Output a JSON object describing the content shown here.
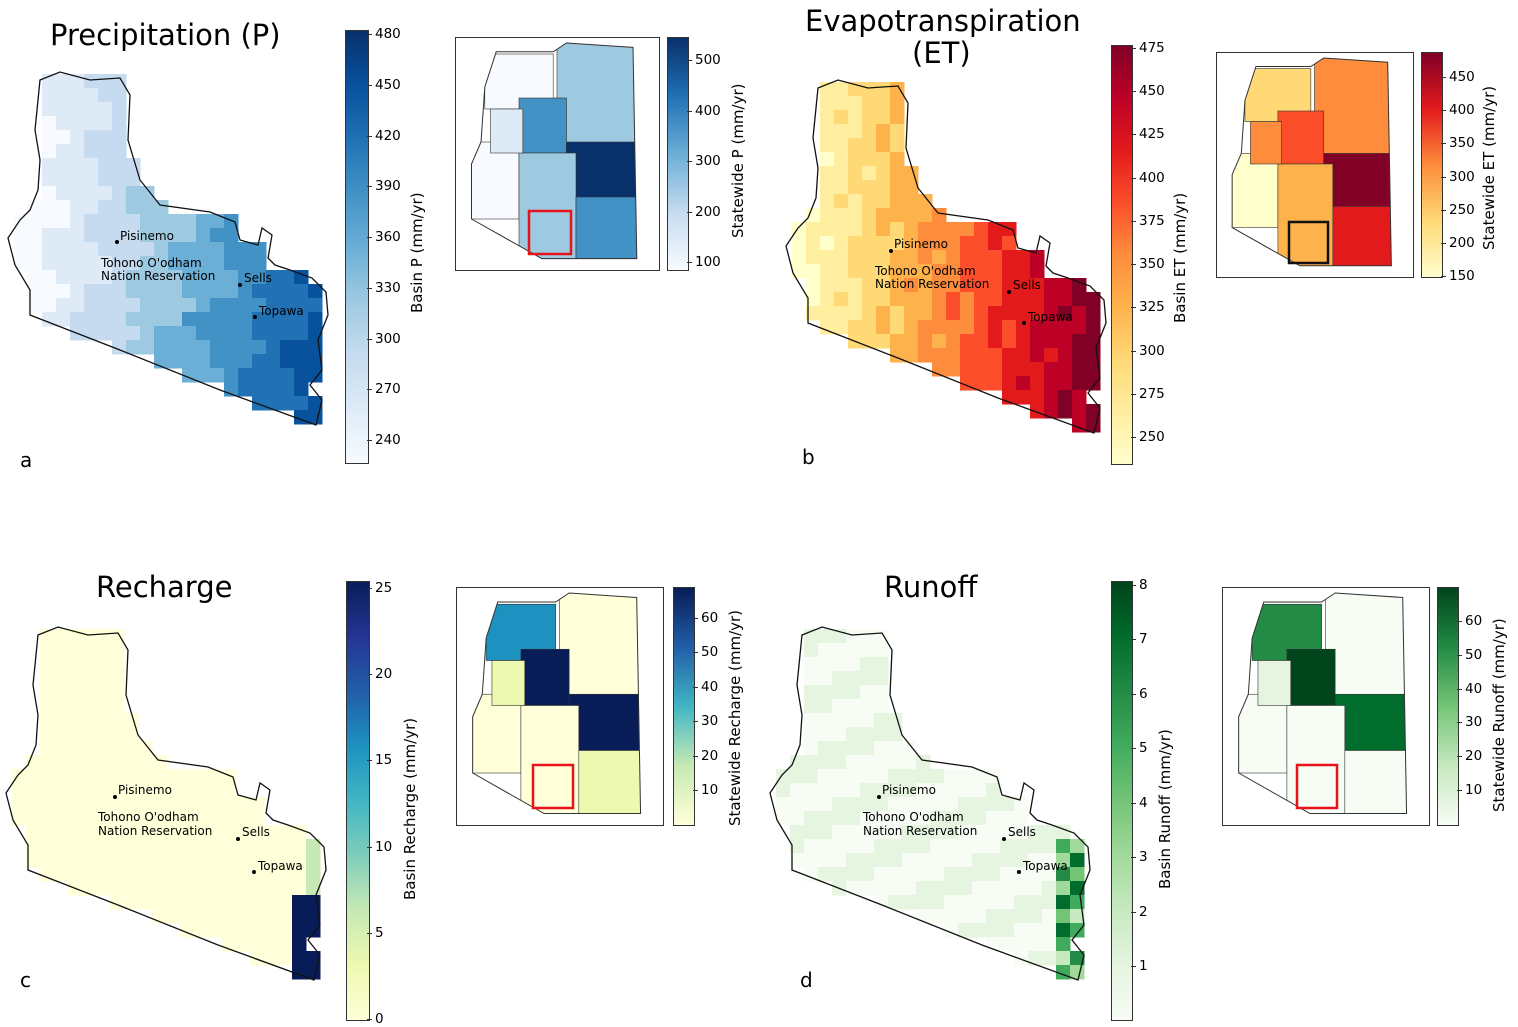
{
  "panels": [
    {
      "id": "a",
      "title": "Precipitation (P)",
      "letter": "a",
      "basin_label": "Basin P (mm/yr)",
      "basin_ticks": [
        "480",
        "450",
        "420",
        "390",
        "360",
        "330",
        "300",
        "270",
        "240"
      ],
      "statewide_label": "Statewide P (mm/yr)",
      "statewide_ticks": [
        "500",
        "400",
        "300",
        "200",
        "100"
      ],
      "colormap": [
        "#f7fbff",
        "#deebf7",
        "#c6dbef",
        "#9ecae1",
        "#6baed6",
        "#4292c6",
        "#2171b5",
        "#08519c",
        "#08306b"
      ],
      "inset_box_color": "#e8121b"
    },
    {
      "id": "b",
      "title": "Evapotranspiration\n(ET)",
      "title_line1": "Evapotranspiration",
      "title_line2": "(ET)",
      "letter": "b",
      "basin_label": "Basin ET (mm/yr)",
      "basin_ticks": [
        "475",
        "450",
        "425",
        "400",
        "375",
        "350",
        "325",
        "300",
        "275",
        "250"
      ],
      "statewide_label": "Statewide ET (mm/yr)",
      "statewide_ticks": [
        "450",
        "400",
        "350",
        "300",
        "250",
        "200",
        "150"
      ],
      "colormap": [
        "#ffffcc",
        "#ffeda0",
        "#fed976",
        "#feb24c",
        "#fd8d3c",
        "#fc4e2a",
        "#e31a1c",
        "#bd0026",
        "#800026"
      ],
      "inset_box_color": "#111111"
    },
    {
      "id": "c",
      "title": "Recharge",
      "letter": "c",
      "basin_label": "Basin Recharge (mm/yr)",
      "basin_ticks": [
        "25",
        "20",
        "15",
        "10",
        "5",
        "0"
      ],
      "statewide_label": "Statewide Recharge (mm/yr)",
      "statewide_ticks": [
        "60",
        "50",
        "40",
        "30",
        "20",
        "10"
      ],
      "colormap": [
        "#ffffd9",
        "#edf8b1",
        "#c7e9b4",
        "#7fcdbb",
        "#41b6c4",
        "#1d91c0",
        "#225ea8",
        "#253494",
        "#081d58"
      ],
      "inset_box_color": "#e8121b"
    },
    {
      "id": "d",
      "title": "Runoff",
      "letter": "d",
      "basin_label": "Basin Runoff (mm/yr)",
      "basin_ticks": [
        "8",
        "7",
        "6",
        "5",
        "4",
        "3",
        "2",
        "1"
      ],
      "statewide_label": "Statewide Runoff (mm/yr)",
      "statewide_ticks": [
        "60",
        "50",
        "40",
        "30",
        "20",
        "10"
      ],
      "colormap": [
        "#f7fcf5",
        "#e5f5e0",
        "#c7e9c0",
        "#a1d99b",
        "#74c476",
        "#41ab5d",
        "#238b45",
        "#006d2c",
        "#00441b"
      ],
      "inset_box_color": "#e8121b"
    }
  ],
  "places": {
    "pisinemo": "Pisinemo",
    "reservation_line1": "Tohono O'odham",
    "reservation_line2": "Nation Reservation",
    "sells": "Sells",
    "topawa": "Topawa"
  }
}
